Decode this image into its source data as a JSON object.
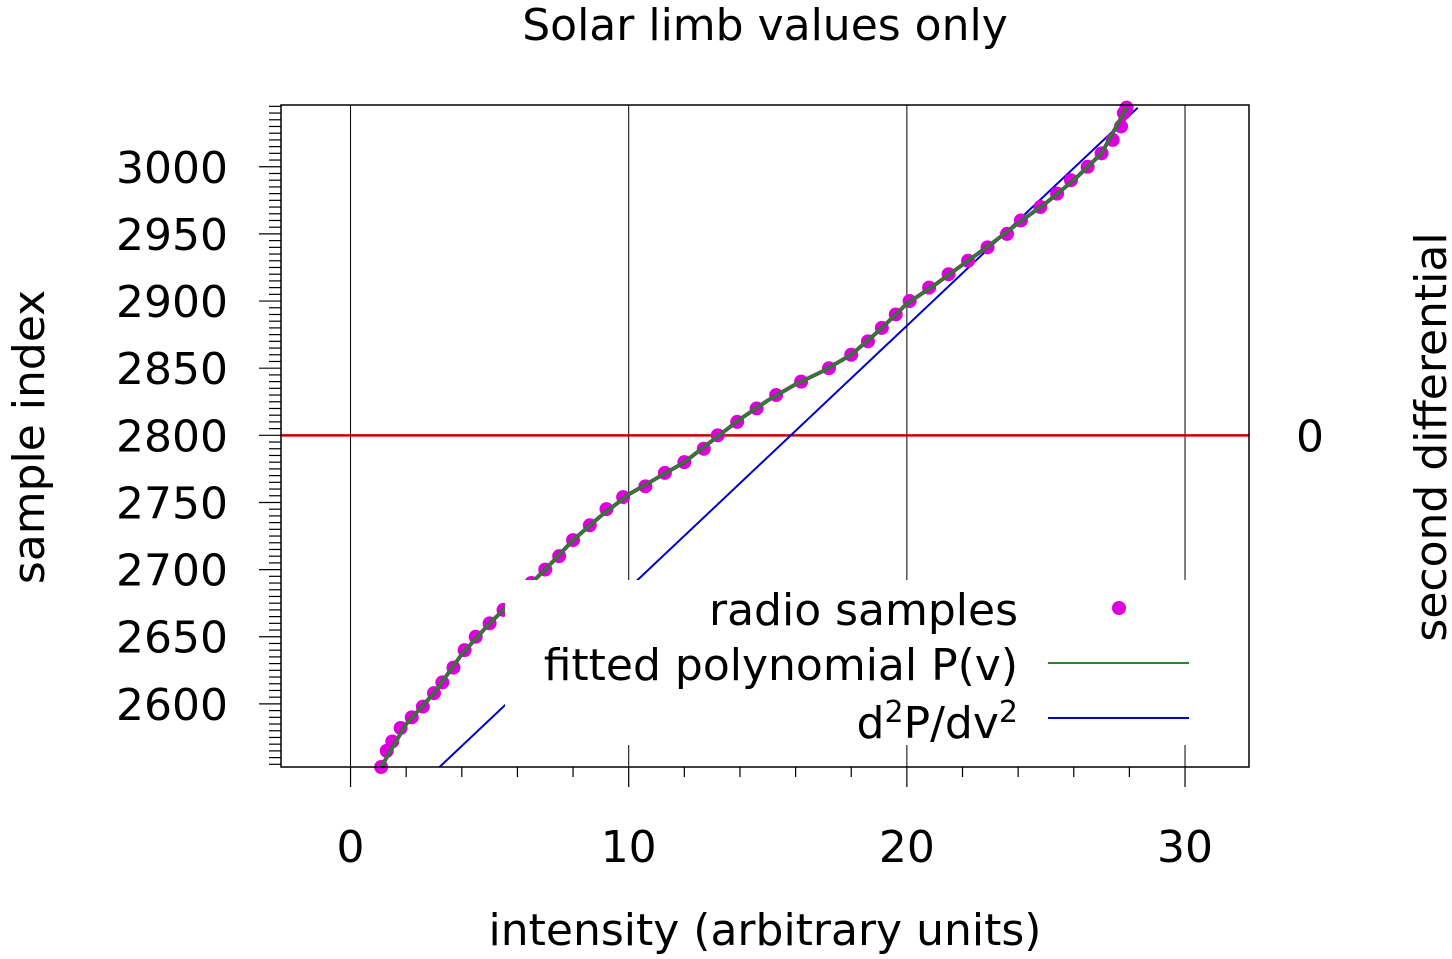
{
  "chart_data": {
    "type": "scatter",
    "title": "Solar limb values only",
    "xlabel": "intensity (arbitrary units)",
    "ylabel": "sample index",
    "y2label": "second differential",
    "xlim": [
      -2.5,
      32.3
    ],
    "ylim": [
      2553,
      3046
    ],
    "x_ticks": [
      0,
      10,
      20,
      30
    ],
    "y_ticks": [
      2600,
      2650,
      2700,
      2750,
      2800,
      2850,
      2900,
      2950,
      3000
    ],
    "y2_ticks": [
      {
        "label": "0",
        "y": 2800
      }
    ],
    "grid": true,
    "legend": {
      "placement": "bottom-right",
      "entries": [
        {
          "label": "radio samples",
          "marker": "dot",
          "color": "#dd00dd"
        },
        {
          "label": "fitted polynomial P(v)",
          "marker": "line",
          "color": "#228b22"
        },
        {
          "label": "d²P/dv²",
          "marker": "line",
          "color": "#0000cc"
        }
      ]
    },
    "colors": {
      "samples": "#dd00dd",
      "fit": "#228b22",
      "fit_stroke": "#555555",
      "second_diff": "#0000cc",
      "zero_line": "#cc0000"
    },
    "series": [
      {
        "name": "radio samples",
        "kind": "scatter",
        "points": [
          [
            1.1,
            2553
          ],
          [
            1.3,
            2565
          ],
          [
            1.5,
            2572
          ],
          [
            1.8,
            2582
          ],
          [
            2.2,
            2590
          ],
          [
            2.6,
            2598
          ],
          [
            3.0,
            2608
          ],
          [
            3.3,
            2616
          ],
          [
            3.7,
            2627
          ],
          [
            4.1,
            2640
          ],
          [
            4.5,
            2650
          ],
          [
            5.0,
            2660
          ],
          [
            5.5,
            2670
          ],
          [
            6.0,
            2680
          ],
          [
            6.5,
            2690
          ],
          [
            7.0,
            2700
          ],
          [
            7.5,
            2710
          ],
          [
            8.0,
            2722
          ],
          [
            8.6,
            2733
          ],
          [
            9.2,
            2745
          ],
          [
            9.8,
            2754
          ],
          [
            10.6,
            2762
          ],
          [
            11.3,
            2772
          ],
          [
            12.0,
            2780
          ],
          [
            12.7,
            2790
          ],
          [
            13.2,
            2800
          ],
          [
            13.9,
            2810
          ],
          [
            14.6,
            2820
          ],
          [
            15.3,
            2830
          ],
          [
            16.2,
            2840
          ],
          [
            17.2,
            2850
          ],
          [
            18.0,
            2860
          ],
          [
            18.6,
            2870
          ],
          [
            19.1,
            2880
          ],
          [
            19.6,
            2890
          ],
          [
            20.1,
            2900
          ],
          [
            20.8,
            2910
          ],
          [
            21.5,
            2920
          ],
          [
            22.2,
            2930
          ],
          [
            22.9,
            2940
          ],
          [
            23.6,
            2950
          ],
          [
            24.1,
            2960
          ],
          [
            24.8,
            2970
          ],
          [
            25.4,
            2980
          ],
          [
            25.9,
            2990
          ],
          [
            26.5,
            3000
          ],
          [
            27.0,
            3010
          ],
          [
            27.4,
            3020
          ],
          [
            27.7,
            3030
          ],
          [
            27.8,
            3040
          ],
          [
            27.9,
            3044
          ]
        ]
      },
      {
        "name": "fitted polynomial P(v)",
        "kind": "line",
        "points": [
          [
            1.1,
            2553
          ],
          [
            2.0,
            2585
          ],
          [
            3.0,
            2608
          ],
          [
            4.0,
            2637
          ],
          [
            5.0,
            2660
          ],
          [
            6.0,
            2680
          ],
          [
            7.0,
            2700
          ],
          [
            8.0,
            2722
          ],
          [
            9.0,
            2740
          ],
          [
            10.0,
            2756
          ],
          [
            11.0,
            2768
          ],
          [
            12.0,
            2780
          ],
          [
            13.0,
            2796
          ],
          [
            14.0,
            2812
          ],
          [
            15.0,
            2826
          ],
          [
            16.0,
            2838
          ],
          [
            17.0,
            2848
          ],
          [
            18.0,
            2860
          ],
          [
            19.0,
            2878
          ],
          [
            20.0,
            2898
          ],
          [
            21.0,
            2912
          ],
          [
            22.0,
            2927
          ],
          [
            23.0,
            2942
          ],
          [
            24.0,
            2958
          ],
          [
            25.0,
            2973
          ],
          [
            26.0,
            2990
          ],
          [
            27.0,
            3010
          ],
          [
            27.9,
            3044
          ]
        ]
      },
      {
        "name": "d²P/dv²",
        "kind": "line",
        "points": [
          [
            3.2,
            2553
          ],
          [
            28.3,
            3044
          ]
        ]
      },
      {
        "name": "zero line",
        "kind": "hline",
        "y": 2800
      }
    ]
  }
}
